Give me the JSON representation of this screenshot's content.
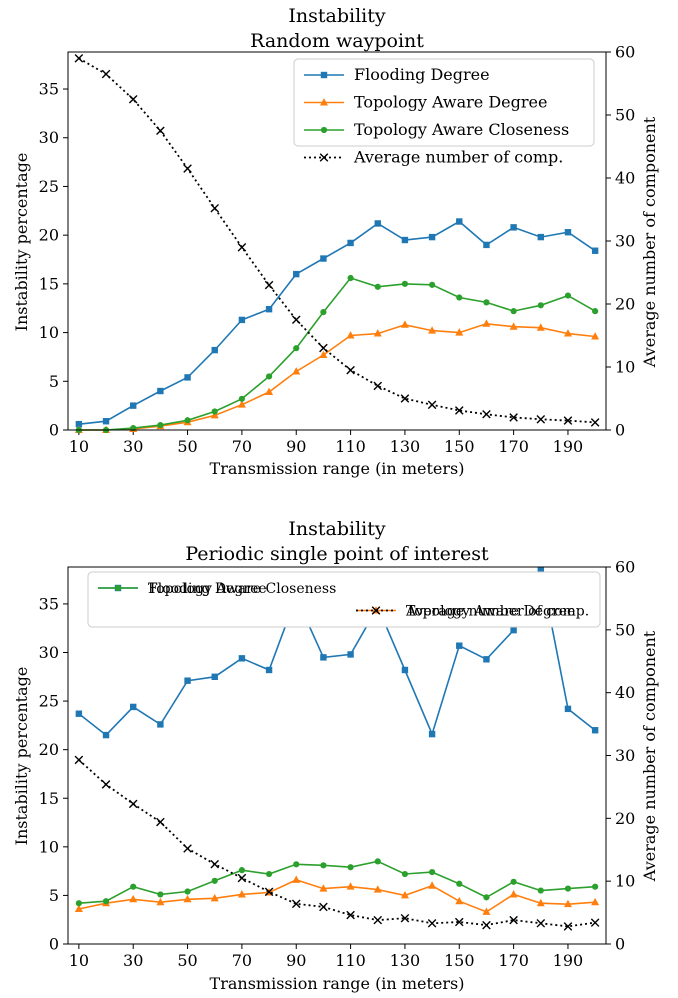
{
  "chart_data": [
    {
      "type": "line",
      "title": "Instability",
      "subtitle": "Random waypoint",
      "xlabel": "Transmission range (in meters)",
      "ylabel": "Instability percentage",
      "y2label": "Average number of component",
      "x": [
        10,
        20,
        30,
        40,
        50,
        60,
        70,
        80,
        90,
        100,
        110,
        120,
        130,
        140,
        150,
        160,
        170,
        180,
        190,
        200
      ],
      "xticks": [
        10,
        30,
        50,
        70,
        90,
        110,
        130,
        150,
        170,
        190
      ],
      "xlim": [
        6,
        204
      ],
      "yticks": [
        0,
        5,
        10,
        15,
        20,
        25,
        30,
        35
      ],
      "ylim": [
        0,
        38.8
      ],
      "y2ticks": [
        0,
        10,
        20,
        30,
        40,
        50,
        60
      ],
      "y2lim": [
        0,
        60
      ],
      "legend_position": "top-right",
      "legend_columns": 1,
      "series": [
        {
          "name": "Flooding Degree",
          "axis": "left",
          "color": "#1f77b4",
          "marker": "square",
          "values": [
            0.6,
            0.9,
            2.5,
            4.0,
            5.4,
            8.2,
            11.3,
            12.4,
            16.0,
            17.6,
            19.2,
            21.2,
            19.5,
            19.8,
            21.4,
            19.0,
            20.8,
            19.8,
            20.3,
            18.4
          ]
        },
        {
          "name": "Topology Aware Degree",
          "axis": "left",
          "color": "#ff7f0e",
          "marker": "triangle",
          "values": [
            0.0,
            0.0,
            0.1,
            0.4,
            0.8,
            1.5,
            2.6,
            3.9,
            6.0,
            7.7,
            9.7,
            9.9,
            10.8,
            10.2,
            10.0,
            10.9,
            10.6,
            10.5,
            9.9,
            9.6
          ]
        },
        {
          "name": "Topology Aware Closeness",
          "axis": "left",
          "color": "#2ca02c",
          "marker": "circle",
          "values": [
            0.0,
            0.0,
            0.2,
            0.5,
            1.0,
            1.9,
            3.2,
            5.5,
            8.4,
            12.1,
            15.6,
            14.7,
            15.0,
            14.9,
            13.6,
            13.1,
            12.2,
            12.8,
            13.8,
            12.2
          ]
        },
        {
          "name": "Average number of comp.",
          "axis": "right",
          "color": "#000000",
          "marker": "x",
          "dash": "2,3",
          "values": [
            59.0,
            56.5,
            52.5,
            47.5,
            41.5,
            35.2,
            29.0,
            23.0,
            17.5,
            13.0,
            9.5,
            7.0,
            5.0,
            4.0,
            3.1,
            2.5,
            2.0,
            1.7,
            1.5,
            1.2
          ]
        }
      ]
    },
    {
      "type": "line",
      "title": "Instability",
      "subtitle": "Periodic single point of interest",
      "xlabel": "Transmission range (in meters)",
      "ylabel": "Instability percentage",
      "y2label": "Average number of component",
      "x": [
        10,
        20,
        30,
        40,
        50,
        60,
        70,
        80,
        90,
        100,
        110,
        120,
        130,
        140,
        150,
        160,
        170,
        180,
        190,
        200
      ],
      "xticks": [
        10,
        30,
        50,
        70,
        90,
        110,
        130,
        150,
        170,
        190
      ],
      "xlim": [
        6,
        204
      ],
      "yticks": [
        0,
        5,
        10,
        15,
        20,
        25,
        30,
        35
      ],
      "ylim": [
        0,
        38.8
      ],
      "y2ticks": [
        0,
        10,
        20,
        30,
        40,
        50,
        60
      ],
      "y2lim": [
        0,
        60
      ],
      "legend_position": "top",
      "legend_columns": 2,
      "series": [
        {
          "name": "Flooding Degree",
          "axis": "left",
          "color": "#1f77b4",
          "marker": "square",
          "values": [
            23.7,
            21.5,
            24.4,
            22.6,
            27.1,
            27.5,
            29.4,
            28.2,
            35.7,
            29.5,
            29.8,
            34.7,
            28.2,
            21.6,
            30.7,
            29.3,
            32.3,
            38.5,
            24.2,
            22.0
          ]
        },
        {
          "name": "Topology Aware Degree",
          "axis": "left",
          "color": "#ff7f0e",
          "marker": "triangle",
          "values": [
            3.6,
            4.2,
            4.6,
            4.3,
            4.6,
            4.7,
            5.1,
            5.3,
            6.6,
            5.7,
            5.9,
            5.6,
            5.0,
            6.0,
            4.4,
            3.3,
            5.1,
            4.2,
            4.1,
            4.3
          ]
        },
        {
          "name": "Topology Aware Closeness",
          "axis": "left",
          "color": "#2ca02c",
          "marker": "circle",
          "values": [
            4.2,
            4.4,
            5.9,
            5.1,
            5.4,
            6.5,
            7.6,
            7.2,
            8.2,
            8.1,
            7.9,
            8.5,
            7.2,
            7.4,
            6.2,
            4.8,
            6.4,
            5.5,
            5.7,
            5.9
          ]
        },
        {
          "name": "Average number of comp.",
          "axis": "right",
          "color": "#000000",
          "marker": "x",
          "dash": "2,3",
          "values": [
            29.3,
            25.4,
            22.3,
            19.4,
            15.2,
            12.7,
            10.5,
            8.3,
            6.4,
            5.9,
            4.6,
            3.8,
            4.1,
            3.3,
            3.5,
            3.0,
            3.8,
            3.3,
            2.8,
            3.4
          ]
        }
      ]
    }
  ]
}
